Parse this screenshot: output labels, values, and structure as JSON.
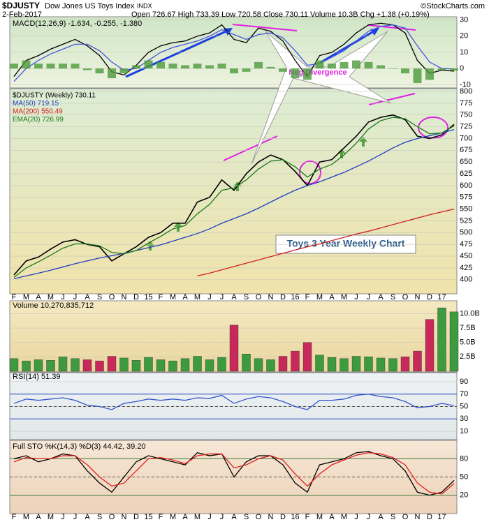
{
  "header": {
    "symbol": "$DJUSTY",
    "name": "Dow Jones US Toys Index",
    "exchange": "INDX",
    "copyright": "©StockCharts.com",
    "date": "2-Feb-2017",
    "quote": "Open 726.67 High 733.39 Low 720.58 Close 730.11 Volume 10.3B Chg +1.38 (+0.19%)"
  },
  "chart_data": [
    {
      "type": "line",
      "title": "MACD(12,26,9) -1.634, -0.255, -1.380",
      "ylim": [
        -12,
        32
      ],
      "yticks": [
        30,
        20,
        10,
        0,
        -10
      ],
      "series": [
        {
          "color": "#000000",
          "values": [
            -5,
            5,
            8,
            12,
            15,
            18,
            14,
            8,
            -2,
            -4,
            2,
            10,
            14,
            16,
            17,
            20,
            22,
            27,
            18,
            16,
            25,
            23,
            17,
            5,
            -5,
            8,
            10,
            15,
            22,
            27,
            28,
            27,
            22,
            5,
            -3,
            -1,
            -1.634
          ]
        },
        {
          "color": "#4455dd",
          "values": [
            -8,
            0,
            5,
            9,
            12,
            15,
            15,
            11,
            4,
            -1,
            0,
            5,
            10,
            13,
            15,
            17,
            20,
            24,
            21,
            18,
            21,
            22,
            19,
            11,
            2,
            3,
            7,
            11,
            17,
            23,
            26,
            27,
            25,
            14,
            4,
            0,
            -0.255
          ]
        },
        {
          "color": "#4c9a3c",
          "style": "bar",
          "values": [
            3,
            5,
            3,
            3,
            3,
            3,
            -1,
            -3,
            -6,
            -3,
            2,
            5,
            4,
            3,
            2,
            3,
            2,
            3,
            -3,
            -2,
            4,
            1,
            -2,
            -6,
            -7,
            5,
            3,
            4,
            5,
            4,
            2,
            0,
            -3,
            -9,
            -7,
            -1,
            -1.38
          ]
        }
      ]
    },
    {
      "type": "line",
      "title": "$DJUSTY (Weekly) 730.11",
      "categories": [
        "F",
        "M",
        "A",
        "M",
        "J",
        "J",
        "A",
        "S",
        "O",
        "N",
        "D",
        "15",
        "F",
        "M",
        "A",
        "M",
        "J",
        "J",
        "A",
        "S",
        "O",
        "N",
        "D",
        "16",
        "F",
        "M",
        "A",
        "M",
        "J",
        "J",
        "A",
        "S",
        "O",
        "N",
        "D",
        "17",
        null
      ],
      "ylim": [
        370,
        806
      ],
      "yticks": [
        400,
        425,
        450,
        475,
        500,
        525,
        550,
        575,
        600,
        625,
        650,
        675,
        700,
        725,
        750,
        775,
        800
      ],
      "annotations": [
        "Neg Divergence",
        "Toys 3 Year Weekly Chart"
      ],
      "series": [
        {
          "name": "$DJUSTY (Weekly) 730.11",
          "color": "#000000",
          "values": [
            410,
            440,
            448,
            465,
            480,
            485,
            475,
            470,
            440,
            455,
            470,
            490,
            500,
            520,
            520,
            565,
            575,
            612,
            590,
            625,
            650,
            665,
            655,
            630,
            600,
            650,
            655,
            680,
            705,
            735,
            745,
            750,
            740,
            705,
            700,
            708,
            730
          ]
        },
        {
          "name": "MA(50) 719.15",
          "color": "#1f3fbf",
          "values": [
            402,
            408,
            414,
            420,
            427,
            434,
            440,
            446,
            451,
            456,
            462,
            468,
            474,
            482,
            490,
            498,
            508,
            520,
            530,
            540,
            552,
            565,
            578,
            590,
            600,
            608,
            618,
            628,
            640,
            652,
            666,
            680,
            692,
            700,
            706,
            712,
            719
          ]
        },
        {
          "name": "MA(200) 550.49",
          "color": "#d02020",
          "values": [
            null,
            null,
            null,
            null,
            null,
            null,
            null,
            null,
            null,
            null,
            null,
            null,
            null,
            null,
            null,
            408,
            414,
            421,
            428,
            435,
            442,
            449,
            456,
            463,
            470,
            476,
            483,
            490,
            497,
            503,
            510,
            517,
            524,
            531,
            538,
            544,
            550
          ]
        },
        {
          "name": "EMA(20) 726.99",
          "color": "#1a7a1a",
          "values": [
            405,
            425,
            438,
            452,
            467,
            476,
            476,
            472,
            458,
            455,
            462,
            478,
            492,
            508,
            515,
            540,
            560,
            590,
            595,
            612,
            635,
            652,
            655,
            640,
            618,
            635,
            645,
            665,
            690,
            720,
            738,
            745,
            742,
            725,
            710,
            712,
            727
          ]
        }
      ]
    },
    {
      "type": "bar",
      "title": "Volume 10,270,835,712",
      "ylim": [
        0,
        12.1
      ],
      "yticks": [
        {
          "value": 2.5,
          "label": "2.5B"
        },
        {
          "value": 5,
          "label": "5.0B"
        },
        {
          "value": 7.5,
          "label": "7.5B"
        },
        {
          "value": 10,
          "label": "10.0B"
        }
      ],
      "up_color": "#3e9a3e",
      "down_color": "#c8285a",
      "values": [
        2.2,
        1.8,
        2.0,
        1.9,
        2.5,
        2.2,
        2.0,
        1.8,
        2.6,
        2.3,
        1.9,
        2.4,
        2.0,
        1.8,
        2.2,
        2.6,
        2.0,
        2.4,
        8.0,
        3.0,
        2.2,
        2.0,
        2.6,
        3.5,
        5.0,
        2.8,
        2.4,
        2.2,
        2.6,
        2.5,
        2.3,
        2.2,
        2.5,
        3.5,
        9.0,
        11.0,
        10.3
      ]
    },
    {
      "type": "line",
      "title": "RSI(14) 51.39",
      "ylim": [
        0,
        100
      ],
      "yticks": [
        10,
        30,
        50,
        70,
        90
      ],
      "reference_lines": [
        70,
        50,
        30
      ],
      "series": [
        {
          "color": "#3355cc",
          "values": [
            55,
            62,
            60,
            62,
            64,
            60,
            52,
            50,
            45,
            55,
            58,
            62,
            60,
            62,
            60,
            64,
            63,
            68,
            55,
            62,
            66,
            64,
            58,
            50,
            45,
            60,
            60,
            62,
            68,
            70,
            66,
            64,
            58,
            48,
            50,
            55,
            51.39
          ]
        }
      ]
    },
    {
      "type": "line",
      "title": "Full STO %K(14,3) %D(3) 44.42, 39.20",
      "categories": [
        "F",
        "M",
        "A",
        "M",
        "J",
        "J",
        "A",
        "S",
        "O",
        "N",
        "D",
        "15",
        "F",
        "M",
        "A",
        "M",
        "J",
        "J",
        "A",
        "S",
        "O",
        "N",
        "D",
        "16",
        "F",
        "M",
        "A",
        "M",
        "J",
        "J",
        "A",
        "S",
        "O",
        "N",
        "D",
        "17",
        null
      ],
      "ylim": [
        0,
        100
      ],
      "yticks": [
        20,
        50,
        80
      ],
      "reference_lines": [
        80,
        50,
        20
      ],
      "series": [
        {
          "color": "#000000",
          "values": [
            80,
            85,
            75,
            80,
            88,
            85,
            60,
            40,
            25,
            50,
            75,
            85,
            80,
            75,
            70,
            90,
            85,
            88,
            50,
            75,
            85,
            85,
            70,
            40,
            25,
            70,
            75,
            80,
            90,
            92,
            85,
            80,
            60,
            25,
            20,
            25,
            44.42
          ]
        },
        {
          "color": "#e02020",
          "values": [
            75,
            82,
            80,
            80,
            85,
            85,
            70,
            50,
            35,
            40,
            60,
            80,
            82,
            78,
            72,
            85,
            88,
            88,
            65,
            70,
            80,
            85,
            78,
            55,
            35,
            55,
            70,
            78,
            86,
            90,
            88,
            82,
            70,
            40,
            25,
            22,
            39.2
          ]
        }
      ]
    }
  ]
}
